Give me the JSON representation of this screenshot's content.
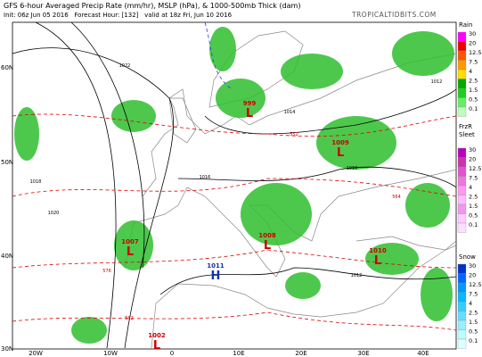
{
  "header": {
    "title": "GFS 6-hour Averaged Precip Rate (mm/hr), MSLP (hPa), & 1000-500mb Thick (dam)",
    "init": "Init: 06z Jun 05 2016",
    "forecast_hour": "Forecast Hour: [132]",
    "valid": "valid at 18z Fri, Jun 10 2016",
    "credit": "TROPICALTIDBITS.COM"
  },
  "map": {
    "lat_labels": [
      "60N",
      "50N",
      "40N",
      "30N"
    ],
    "lon_labels": [
      "20W",
      "10W",
      "0",
      "10E",
      "20E",
      "30E",
      "40E"
    ],
    "pressure_centers": [
      {
        "value": "999",
        "letter": "L"
      },
      {
        "value": "1009",
        "letter": "L"
      },
      {
        "value": "1007",
        "letter": "L"
      },
      {
        "value": "1008",
        "letter": "L"
      },
      {
        "value": "1011",
        "letter": "H"
      },
      {
        "value": "1010",
        "letter": "L"
      },
      {
        "value": "1002",
        "letter": "L"
      }
    ],
    "contour_labels": [
      "1022",
      "1020",
      "1018",
      "1016",
      "1014",
      "1012",
      "1012",
      "1016",
      "552",
      "564",
      "576",
      "582"
    ]
  },
  "legends": [
    {
      "title": "Rain",
      "levels": [
        "30",
        "20",
        "12.5",
        "7.5",
        "4",
        "2.5",
        "1.5",
        "0.5",
        "0.1"
      ]
    },
    {
      "title": "FrzR\nSleet",
      "levels": [
        "30",
        "20",
        "12.5",
        "7.5",
        "4",
        "2.5",
        "1.5",
        "0.5",
        "0.1"
      ]
    },
    {
      "title": "Snow",
      "levels": [
        "30",
        "20",
        "12.5",
        "7.5",
        "4",
        "2.5",
        "1.5",
        "0.5",
        "0.1"
      ]
    }
  ]
}
